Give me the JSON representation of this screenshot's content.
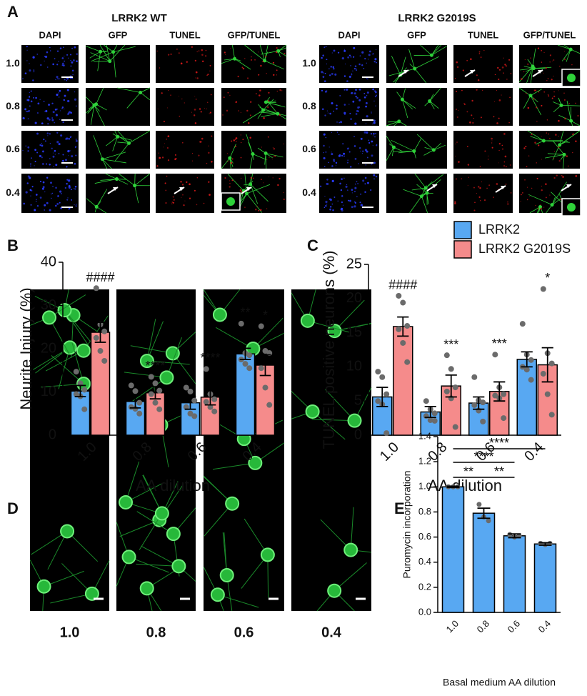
{
  "panel_letters": [
    "A",
    "B",
    "C",
    "D",
    "E"
  ],
  "panel_a": {
    "groups": [
      {
        "title": "LRRK2 WT",
        "columns": [
          "DAPI",
          "GFP",
          "TUNEL",
          "GFP/TUNEL"
        ],
        "rows": [
          "1.0",
          "0.8",
          "0.6",
          "0.4"
        ]
      },
      {
        "title": "LRRK2 G2019S",
        "columns": [
          "DAPI",
          "GFP",
          "TUNEL",
          "GFP/TUNEL"
        ],
        "rows": [
          "1.0",
          "0.8",
          "0.6",
          "0.4"
        ]
      }
    ]
  },
  "panel_d": {
    "labels": [
      "1.0",
      "0.8",
      "0.6",
      "0.4"
    ]
  },
  "chart_data": [
    {
      "type": "bar",
      "ylabel": "Neurite Injury (%)",
      "xlabel": "AA dilution",
      "categories": [
        "1.0",
        "0.8",
        "0.6",
        "0.4"
      ],
      "ylim": [
        0,
        40
      ],
      "yticks": [
        0,
        10,
        20,
        30,
        40
      ],
      "grid": false,
      "series": [
        {
          "color": "#58a8f2",
          "values": [
            10.2,
            7.8,
            7.5,
            18.8
          ],
          "errors": [
            1.3,
            1.5,
            1.5,
            1.3
          ],
          "points": [
            [
              14.7,
              12,
              10.5,
              9.5,
              9,
              6
            ],
            [
              11.5,
              10.2,
              7.5,
              6.5,
              6.1,
              5
            ],
            [
              11,
              10.1,
              8,
              6.5,
              5,
              4.4
            ],
            [
              25.8,
              19,
              18.5,
              17.5,
              16.5,
              15.5
            ]
          ],
          "annotations": [
            null,
            null,
            null,
            "**"
          ]
        },
        {
          "color": "#f58b8b",
          "values": [
            23.8,
            9.8,
            8.8,
            16.2
          ],
          "errors": [
            2.3,
            1.4,
            1.8,
            2.4
          ],
          "points": [
            [
              34,
              25.6,
              24,
              22.5,
              19.5,
              17.2
            ],
            [
              13.5,
              12,
              10.3,
              9.5,
              7.5,
              6
            ],
            [
              15.3,
              9.5,
              8.3,
              7.7,
              6.5,
              5.5
            ],
            [
              25.2,
              19.5,
              19,
              15.5,
              11,
              7
            ]
          ],
          "annotations": [
            "####",
            "****",
            "****",
            "*"
          ]
        }
      ]
    },
    {
      "type": "bar",
      "ylabel": "TUNEL positive neurons (%)",
      "xlabel": "AA dilution",
      "categories": [
        "1.0",
        "0.8",
        "0.6",
        "0.4"
      ],
      "ylim": [
        0,
        25
      ],
      "yticks": [
        0,
        5,
        10,
        15,
        20,
        25
      ],
      "grid": false,
      "legend": "top-right",
      "series": [
        {
          "name": "LRRK2",
          "color": "#58a8f2",
          "values": [
            5.6,
            3.4,
            4.7,
            11.1
          ],
          "errors": [
            1.4,
            0.8,
            0.9,
            1.1
          ],
          "points": [
            [
              9.3,
              8.5,
              6,
              5,
              4.5,
              0.3
            ],
            [
              5,
              3.8,
              3.2,
              2.8,
              2.2,
              2.1
            ],
            [
              8.5,
              5.1,
              4.8,
              4.4,
              3.6,
              2
            ],
            [
              16.3,
              11.8,
              11,
              10,
              9.6,
              8.1
            ]
          ],
          "annotations": [
            null,
            null,
            null,
            null
          ]
        },
        {
          "name": "LRRK2 G2019S",
          "color": "#f58b8b",
          "values": [
            15.9,
            7.2,
            6.4,
            10.3
          ],
          "errors": [
            1.4,
            1.6,
            1.4,
            2.5
          ],
          "points": [
            [
              20.4,
              19.4,
              16,
              15.5,
              13.5,
              10.7
            ],
            [
              11.7,
              9.7,
              7,
              6.4,
              5.4,
              1.2
            ],
            [
              11.8,
              7,
              6,
              5.8,
              5.4,
              2.5
            ],
            [
              21.4,
              12,
              10.5,
              9,
              6,
              3
            ]
          ],
          "annotations": [
            "####",
            "***",
            "***",
            "*"
          ]
        }
      ]
    },
    {
      "type": "bar",
      "ylabel": "Puromycin incorporation",
      "xlabel": "Basal medium AA  dilution",
      "categories": [
        "1.0",
        "0.8",
        "0.6",
        "0.4"
      ],
      "ylim": [
        0,
        1.4
      ],
      "yticks": [
        {
          "value": 0,
          "label": "0.0"
        },
        0.2,
        0.4,
        0.6,
        0.8,
        {
          "value": 1,
          "label": "1.0"
        },
        1.2,
        1.4
      ],
      "grid": false,
      "color": "#58a8f2",
      "values": [
        1.0,
        0.79,
        0.61,
        0.545
      ],
      "errors": [
        0.005,
        0.04,
        0.015,
        0.01
      ],
      "points": [
        [
          1.0,
          1.0,
          1.0
        ],
        [
          0.86,
          0.76,
          0.73
        ],
        [
          0.62,
          0.6,
          0.61
        ],
        [
          0.55,
          0.54,
          0.55
        ]
      ],
      "brackets": [
        "**",
        "**",
        "****",
        "****"
      ]
    }
  ]
}
